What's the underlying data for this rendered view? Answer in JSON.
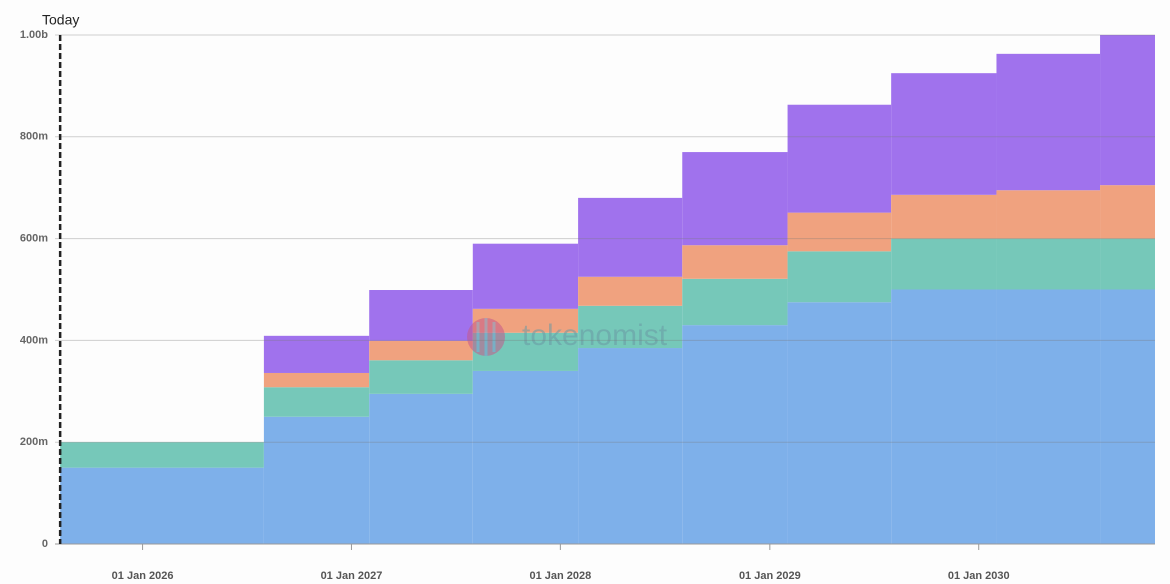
{
  "chart_data": {
    "type": "stacked-step-area",
    "annotation": {
      "label": "Today",
      "date": "2025-08-10"
    },
    "watermark": "tokenomist",
    "x": [
      "2025-08-10",
      "2026-08-01",
      "2027-02-01",
      "2027-08-01",
      "2028-02-01",
      "2028-08-01",
      "2029-02-01",
      "2029-08-01",
      "2030-02-01",
      "2030-08-01"
    ],
    "xlim": [
      "2025-08-01",
      "2030-11-05"
    ],
    "xticks": [
      {
        "value": "2026-01-01",
        "label": "01 Jan 2026"
      },
      {
        "value": "2027-01-01",
        "label": "01 Jan 2027"
      },
      {
        "value": "2028-01-01",
        "label": "01 Jan 2028"
      },
      {
        "value": "2029-01-01",
        "label": "01 Jan 2029"
      },
      {
        "value": "2030-01-01",
        "label": "01 Jan 2030"
      }
    ],
    "ylim": [
      0,
      1000
    ],
    "yticks": [
      0,
      {
        "value": 200,
        "label": "200m"
      },
      {
        "value": 400,
        "label": "400m"
      },
      {
        "value": 600,
        "label": "600m"
      },
      {
        "value": 800,
        "label": "800m"
      },
      {
        "value": 1000,
        "label": "1.00b"
      }
    ],
    "grid": true,
    "series": [
      {
        "color": "#7eb0ea",
        "values": [
          150,
          250,
          295,
          340,
          385,
          430,
          475,
          500,
          500,
          500
        ]
      },
      {
        "color": "#76c8b9",
        "values": [
          50,
          58,
          66,
          75,
          83,
          91,
          100,
          100,
          100,
          100
        ]
      },
      {
        "color": "#f0a27f",
        "values": [
          0,
          28,
          38,
          47,
          57,
          66,
          76,
          86,
          95,
          105
        ]
      },
      {
        "color": "#a072ed",
        "values": [
          0,
          73,
          100,
          128,
          155,
          183,
          212,
          239,
          268,
          295
        ]
      }
    ]
  }
}
